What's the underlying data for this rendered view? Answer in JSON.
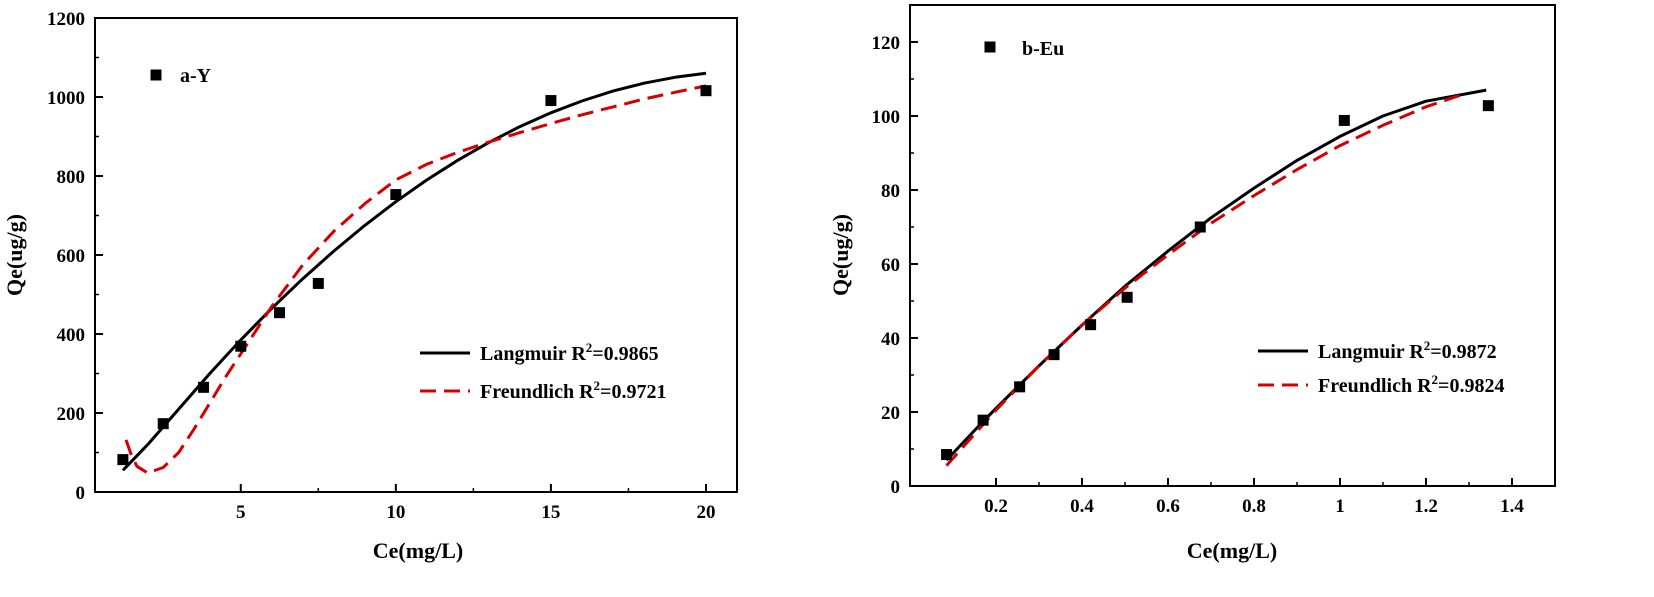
{
  "chart_data": [
    {
      "type": "scatter",
      "panel_label": "a-Y",
      "xlabel": "Ce(mg/L)",
      "ylabel": "Qe(ug/g)",
      "xlim": [
        0.3,
        21
      ],
      "ylim": [
        0,
        1200
      ],
      "xticks": [
        5,
        10,
        15,
        20
      ],
      "yticks": [
        0,
        200,
        400,
        600,
        800,
        1000,
        1200
      ],
      "legend_position": "center-right",
      "series": [
        {
          "name": "a-Y",
          "kind": "points",
          "x": [
            1.2,
            2.5,
            3.8,
            5.0,
            6.25,
            7.5,
            10.0,
            15.0,
            20.0
          ],
          "y": [
            82,
            173,
            265,
            369,
            454,
            528,
            753,
            991,
            1016
          ]
        },
        {
          "name": "Langmuir",
          "legend_prefix": "Langmuir R",
          "legend_exp": "2",
          "legend_suffix": "=0.9865",
          "kind": "line",
          "color": "#000000",
          "dash": "solid",
          "x": [
            1.2,
            2.0,
            3.0,
            4.0,
            5.0,
            6.0,
            7.0,
            8.0,
            9.0,
            10.0,
            11.0,
            12.0,
            13.0,
            14.0,
            15.0,
            16.0,
            17.0,
            18.0,
            19.0,
            20.0
          ],
          "y": [
            55,
            120,
            210,
            300,
            385,
            465,
            540,
            610,
            675,
            735,
            790,
            840,
            885,
            925,
            960,
            990,
            1015,
            1035,
            1050,
            1060
          ]
        },
        {
          "name": "Freundlich",
          "legend_prefix": "Freundlich R",
          "legend_exp": "2",
          "legend_suffix": "=0.9721",
          "kind": "line",
          "color": "#d40000",
          "dash": "dashed",
          "x": [
            1.3,
            1.45,
            1.65,
            2.0,
            2.5,
            3.0,
            3.5,
            4.0,
            4.5,
            5.0,
            6.0,
            7.0,
            8.0,
            9.0,
            10.0,
            11.0,
            12.0,
            13.0,
            14.0,
            15.0,
            16.0,
            17.0,
            18.0,
            19.0,
            20.0
          ],
          "y": [
            132,
            98,
            65,
            48,
            62,
            100,
            160,
            225,
            290,
            350,
            470,
            575,
            660,
            730,
            790,
            830,
            860,
            886,
            910,
            933,
            955,
            975,
            995,
            1012,
            1028
          ]
        }
      ]
    },
    {
      "type": "scatter",
      "panel_label": "b-Eu",
      "xlabel": "Ce(mg/L)",
      "ylabel": "Qe(ug/g)",
      "xlim": [
        0.0,
        1.5
      ],
      "ylim": [
        0,
        130
      ],
      "xticks": [
        0.2,
        0.4,
        0.6,
        0.8,
        1.0,
        1.2,
        1.4
      ],
      "yticks": [
        0,
        20,
        40,
        60,
        80,
        100,
        120
      ],
      "legend_position": "center-right",
      "series": [
        {
          "name": "b-Eu",
          "kind": "points",
          "x": [
            0.085,
            0.17,
            0.255,
            0.335,
            0.42,
            0.505,
            0.675,
            1.01,
            1.345
          ],
          "y": [
            8.5,
            17.8,
            26.8,
            35.5,
            43.6,
            51.0,
            70.0,
            98.8,
            102.8
          ]
        },
        {
          "name": "Langmuir",
          "legend_prefix": "Langmuir R",
          "legend_exp": "2",
          "legend_suffix": "=0.9872",
          "kind": "line",
          "color": "#000000",
          "dash": "solid",
          "x": [
            0.085,
            0.15,
            0.2,
            0.3,
            0.4,
            0.5,
            0.6,
            0.7,
            0.8,
            0.9,
            1.0,
            1.1,
            1.2,
            1.34
          ],
          "y": [
            7.0,
            15.0,
            21.0,
            32.5,
            43.5,
            54.0,
            63.5,
            72.5,
            80.5,
            88.0,
            94.5,
            100.0,
            104.0,
            107.0
          ]
        },
        {
          "name": "Freundlich",
          "legend_prefix": "Freundlich R",
          "legend_exp": "2",
          "legend_suffix": "=0.9824",
          "kind": "line",
          "color": "#d40000",
          "dash": "dashed",
          "x": [
            0.085,
            0.15,
            0.2,
            0.3,
            0.4,
            0.5,
            0.6,
            0.7,
            0.8,
            0.9,
            1.0,
            1.1,
            1.2,
            1.29
          ],
          "y": [
            5.5,
            14.0,
            20.5,
            32.5,
            43.5,
            53.5,
            62.5,
            71.0,
            78.5,
            85.5,
            92.0,
            97.5,
            102.5,
            106.0
          ]
        }
      ]
    }
  ]
}
